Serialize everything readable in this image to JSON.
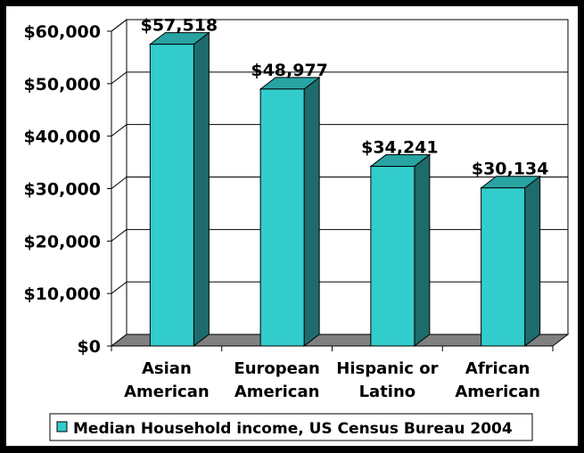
{
  "chart_data": {
    "type": "bar",
    "title": "",
    "xlabel": "",
    "ylabel": "",
    "categories": [
      [
        "Asian",
        "American"
      ],
      [
        "European",
        "American"
      ],
      [
        "Hispanic or",
        "Latino"
      ],
      [
        "African",
        "American"
      ]
    ],
    "series": [
      {
        "name": "Median Household income, US Census Bureau 2004",
        "values": [
          57518,
          48977,
          34241,
          30134
        ]
      }
    ],
    "data_labels": [
      "$57,518",
      "$48,977",
      "$34,241",
      "$30,134"
    ],
    "ylim": [
      0,
      60000
    ],
    "yticks": [
      0,
      10000,
      20000,
      30000,
      40000,
      50000,
      60000
    ],
    "ytick_labels": [
      "$0",
      "$10,000",
      "$20,000",
      "$30,000",
      "$40,000",
      "$50,000",
      "$60,000"
    ],
    "grid": true,
    "legend": "bottom",
    "colors": {
      "bar_front": "#33CCCC",
      "bar_top": "#29A3A3",
      "bar_side": "#1D6B6B",
      "floor": "#808080",
      "background": "#FFFFFF",
      "frame": "#000000"
    }
  }
}
